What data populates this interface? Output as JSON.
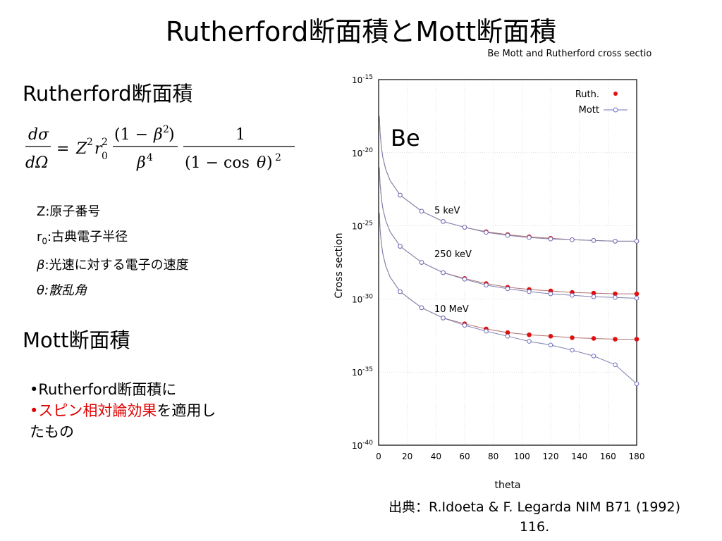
{
  "slide": {
    "title": "Rutherford断面積とMott断面積",
    "rutherford_heading": "Rutherford断面積",
    "definitions": [
      {
        "symbol": "Z",
        "text": ":原子番号"
      },
      {
        "symbol": "r",
        "sub": "0",
        "text": ":古典電子半径"
      },
      {
        "symbol": "β",
        "text": ":光速に対する電子の速度"
      },
      {
        "symbol": "θ",
        "text": ":散乱角"
      }
    ],
    "mott_heading": "Mott断面積",
    "bullets": {
      "b1": "•Rutherford断面積に",
      "b2_red": "•スピン相対論効果",
      "b2_black": "を適用し",
      "b2_cont": "たもの"
    },
    "source_line1": "出典：R.Idoeta & F. Legarda NIM B71 (1992)",
    "source_line2": "116."
  },
  "chart_data": {
    "type": "line",
    "title": "Be Mott and Rutherford cross section",
    "xlabel": "theta",
    "ylabel": "Cross section",
    "xlim": [
      0,
      180
    ],
    "x_ticks": [
      0,
      20,
      40,
      60,
      80,
      100,
      120,
      140,
      160,
      180
    ],
    "y_scale": "log",
    "ylim_exponent": [
      -40,
      -15
    ],
    "y_tick_exponents": [
      -15,
      -20,
      -25,
      -30,
      -35,
      -40
    ],
    "grid": true,
    "legend_position": "top-right",
    "element_label": "Be",
    "x": [
      15,
      30,
      45,
      60,
      75,
      90,
      105,
      120,
      135,
      150,
      165,
      180
    ],
    "curve_labels": [
      "5 keV",
      "250 keV",
      "10 MeV"
    ],
    "series": [
      {
        "name": "Ruth.",
        "marker": "filled-circle",
        "color": "#e01010",
        "groups": [
          {
            "log10_values": [
              -22.9,
              -24.0,
              -24.7,
              -25.1,
              -25.4,
              -25.6,
              -25.75,
              -25.85,
              -25.95,
              -26.0,
              -26.05,
              -26.05
            ]
          },
          {
            "log10_values": [
              -26.4,
              -27.5,
              -28.2,
              -28.6,
              -28.95,
              -29.2,
              -29.35,
              -29.45,
              -29.55,
              -29.6,
              -29.65,
              -29.65
            ]
          },
          {
            "log10_values": [
              -29.5,
              -30.6,
              -31.3,
              -31.7,
              -32.05,
              -32.3,
              -32.45,
              -32.55,
              -32.65,
              -32.7,
              -32.75,
              -32.75
            ]
          }
        ]
      },
      {
        "name": "Mott",
        "marker": "open-circle",
        "color": "#7070c0",
        "groups": [
          {
            "log10_values": [
              -22.9,
              -24.0,
              -24.7,
              -25.1,
              -25.45,
              -25.65,
              -25.8,
              -25.9,
              -25.95,
              -26.0,
              -26.05,
              -26.05
            ]
          },
          {
            "log10_values": [
              -26.4,
              -27.5,
              -28.2,
              -28.65,
              -29.05,
              -29.3,
              -29.5,
              -29.65,
              -29.75,
              -29.85,
              -29.9,
              -29.95
            ]
          },
          {
            "log10_values": [
              -29.5,
              -30.6,
              -31.3,
              -31.8,
              -32.2,
              -32.55,
              -32.9,
              -33.15,
              -33.5,
              -33.9,
              -34.5,
              -35.8
            ]
          }
        ]
      }
    ]
  }
}
